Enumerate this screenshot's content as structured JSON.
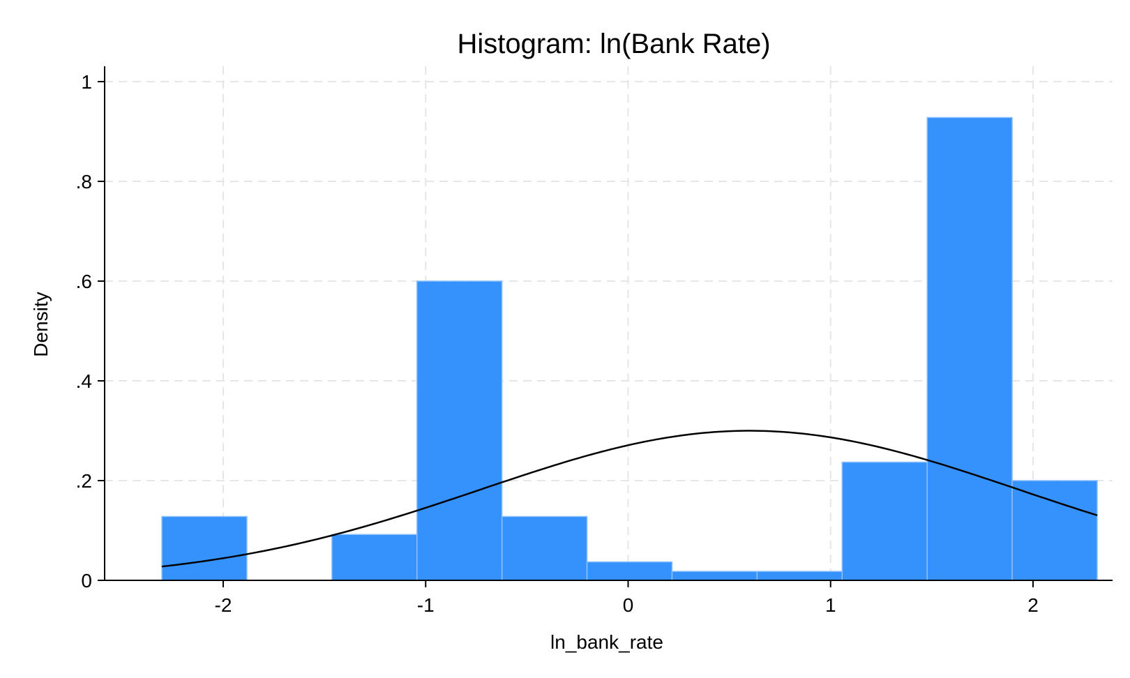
{
  "chart_data": {
    "type": "bar",
    "subtype": "histogram",
    "title": "Histogram: ln(Bank Rate)",
    "xlabel": "ln_bank_rate",
    "ylabel": "Density",
    "xlim": [
      -2.6,
      2.4
    ],
    "ylim": [
      0,
      1.0
    ],
    "x_ticks": [
      -2,
      -1,
      0,
      1,
      2
    ],
    "x_tick_labels": [
      "-2",
      "-1",
      "0",
      "1",
      "2"
    ],
    "y_ticks": [
      0,
      0.2,
      0.4,
      0.6,
      0.8,
      1.0
    ],
    "y_tick_labels": [
      "0",
      ".2",
      ".4",
      ".6",
      ".8",
      "1"
    ],
    "grid": true,
    "bar_color": "#3592FD",
    "bins": [
      {
        "x0": -2.303,
        "x1": -1.883,
        "density": 0.128
      },
      {
        "x0": -1.883,
        "x1": -1.463,
        "density": 0.0
      },
      {
        "x0": -1.463,
        "x1": -1.043,
        "density": 0.092
      },
      {
        "x0": -1.043,
        "x1": -0.623,
        "density": 0.6
      },
      {
        "x0": -0.623,
        "x1": -0.203,
        "density": 0.128
      },
      {
        "x0": -0.203,
        "x1": 0.217,
        "density": 0.037
      },
      {
        "x0": 0.217,
        "x1": 0.637,
        "density": 0.018
      },
      {
        "x0": 0.637,
        "x1": 1.057,
        "density": 0.018
      },
      {
        "x0": 1.057,
        "x1": 1.477,
        "density": 0.237
      },
      {
        "x0": 1.477,
        "x1": 1.897,
        "density": 0.928
      },
      {
        "x0": 1.897,
        "x1": 2.317,
        "density": 0.2
      }
    ],
    "normal_curve": {
      "mean": 0.6,
      "sd": 1.33,
      "x_range": [
        -2.303,
        2.317
      ]
    }
  }
}
